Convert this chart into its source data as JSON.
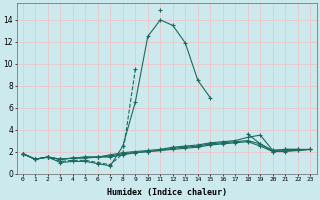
{
  "xlabel": "Humidex (Indice chaleur)",
  "x_labels": [
    "0",
    "1",
    "2",
    "3",
    "4",
    "5",
    "6",
    "7",
    "8",
    "9",
    "10",
    "11",
    "12",
    "13",
    "14",
    "15",
    "16",
    "17",
    "18",
    "19",
    "20",
    "21",
    "22",
    "23"
  ],
  "xlim": [
    -0.5,
    23.5
  ],
  "ylim": [
    0,
    15.5
  ],
  "yticks": [
    0,
    2,
    4,
    6,
    8,
    10,
    12,
    14
  ],
  "bg_color": "#cce9ed",
  "line_color": "#1a6b5e",
  "grid_color": "#e8c8c8",
  "lines": [
    {
      "x": [
        0,
        1,
        2,
        3,
        4,
        5,
        6,
        7,
        8,
        9,
        10,
        11,
        12,
        13,
        14,
        15,
        16,
        17,
        18,
        19,
        20,
        21,
        22,
        23
      ],
      "y": [
        1.8,
        1.3,
        1.5,
        1.0,
        1.1,
        1.1,
        0.9,
        0.7,
        2.5,
        6.5,
        12.5,
        14.0,
        13.5,
        11.9,
        8.5,
        6.9,
        null,
        null,
        3.6,
        2.7,
        2.1,
        2.2,
        2.2,
        null
      ]
    },
    {
      "x": [
        0,
        1,
        2,
        3,
        4,
        5,
        6,
        7,
        8,
        9,
        10,
        11,
        12,
        13,
        14,
        15,
        16,
        17,
        18,
        19,
        20,
        21,
        22,
        23
      ],
      "y": [
        1.8,
        1.3,
        1.5,
        1.1,
        1.2,
        1.2,
        1.0,
        0.8,
        1.8,
        9.5,
        null,
        14.9,
        null,
        null,
        null,
        null,
        null,
        null,
        null,
        null,
        null,
        null,
        null,
        null
      ]
    },
    {
      "x": [
        0,
        1,
        2,
        3,
        4,
        5,
        6,
        7,
        8,
        9,
        10,
        11,
        12,
        13,
        14,
        15,
        16,
        17,
        18,
        19,
        20,
        21,
        22,
        23
      ],
      "y": [
        1.8,
        1.3,
        1.5,
        1.3,
        1.4,
        1.5,
        1.5,
        1.7,
        1.9,
        2.0,
        2.1,
        2.2,
        2.4,
        2.5,
        2.6,
        2.8,
        2.9,
        3.0,
        3.3,
        3.5,
        2.1,
        2.2,
        2.2,
        2.2
      ]
    },
    {
      "x": [
        0,
        1,
        2,
        3,
        4,
        5,
        6,
        7,
        8,
        9,
        10,
        11,
        12,
        13,
        14,
        15,
        16,
        17,
        18,
        19,
        20,
        21,
        22,
        23
      ],
      "y": [
        1.8,
        1.3,
        1.5,
        1.3,
        1.4,
        1.5,
        1.5,
        1.6,
        1.8,
        1.9,
        2.0,
        2.1,
        2.3,
        2.4,
        2.5,
        2.7,
        2.8,
        2.9,
        3.0,
        2.7,
        2.0,
        2.1,
        2.1,
        2.2
      ]
    },
    {
      "x": [
        0,
        1,
        2,
        3,
        4,
        5,
        6,
        7,
        8,
        9,
        10,
        11,
        12,
        13,
        14,
        15,
        16,
        17,
        18,
        19,
        20,
        21,
        22,
        23
      ],
      "y": [
        1.8,
        1.3,
        1.5,
        1.3,
        1.4,
        1.4,
        1.5,
        1.5,
        1.7,
        1.9,
        2.0,
        2.1,
        2.2,
        2.3,
        2.4,
        2.6,
        2.7,
        2.8,
        2.9,
        2.5,
        2.0,
        2.0,
        2.1,
        2.2
      ]
    }
  ]
}
